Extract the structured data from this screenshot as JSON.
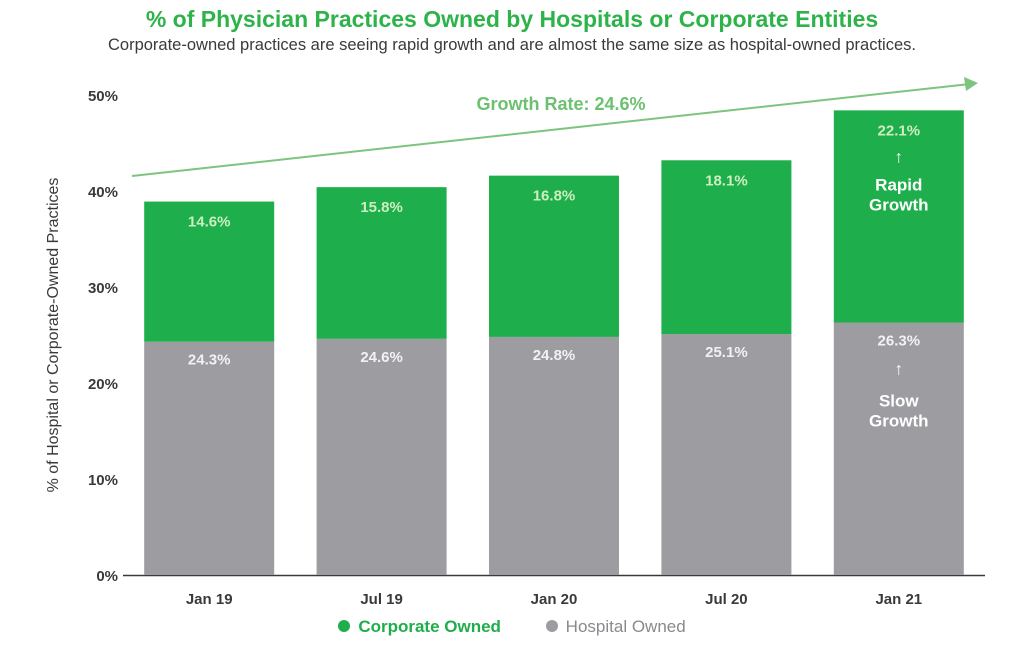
{
  "chart_data": {
    "type": "bar",
    "stacked": true,
    "title": "% of Physician Practices Owned by Hospitals or Corporate Entities",
    "subtitle": "Corporate-owned practices are seeing rapid growth and are almost the same size as hospital-owned practices.",
    "ylabel": "% of Hospital or Corporate-Owned Practices",
    "ylim": [
      0,
      50
    ],
    "yticks": [
      "0%",
      "10%",
      "20%",
      "30%",
      "40%",
      "50%"
    ],
    "categories": [
      "Jan 19",
      "Jul 19",
      "Jan 20",
      "Jul 20",
      "Jan 21"
    ],
    "series": [
      {
        "name": "Hospital Owned",
        "color": "#9d9ca0",
        "label_color": "#f2f2f2",
        "values": [
          24.3,
          24.6,
          24.8,
          25.1,
          26.3
        ],
        "labels": [
          "24.3%",
          "24.6%",
          "24.8%",
          "25.1%",
          "26.3%"
        ]
      },
      {
        "name": "Corporate Owned",
        "color": "#1eae4b",
        "label_color": "#cdeec0",
        "values": [
          14.6,
          15.8,
          16.8,
          18.1,
          22.1
        ],
        "labels": [
          "14.6%",
          "15.8%",
          "16.8%",
          "18.1%",
          "22.1%"
        ]
      }
    ],
    "annotations": {
      "growth_rate": "Growth Rate: 24.6%",
      "rapid_growth": [
        "Rapid",
        "Growth"
      ],
      "slow_growth": [
        "Slow",
        "Growth"
      ],
      "arrow_glyph": "↑"
    },
    "legend_position": "bottom",
    "grid": false
  }
}
